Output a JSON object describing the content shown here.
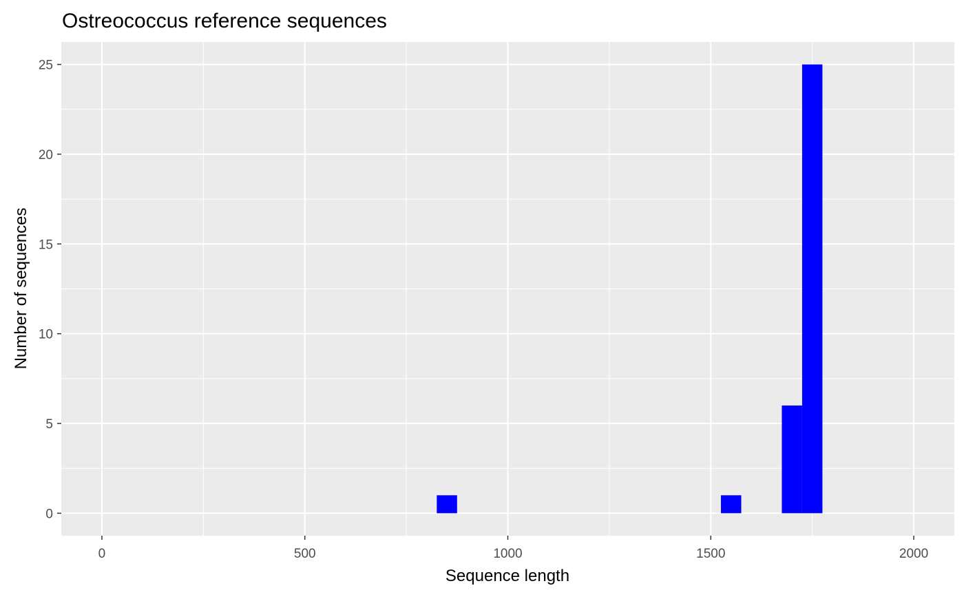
{
  "chart_data": {
    "type": "bar",
    "title": "Ostreococcus reference sequences",
    "xlabel": "Sequence length",
    "ylabel": "Number of sequences",
    "xlim": [
      -100,
      2100
    ],
    "ylim": [
      -1.25,
      26.25
    ],
    "x_ticks": [
      0,
      500,
      1000,
      1500,
      2000
    ],
    "x_minor_ticks": [
      250,
      750,
      1250,
      1750
    ],
    "y_ticks": [
      0,
      5,
      10,
      15,
      20,
      25
    ],
    "y_minor_ticks": [
      2.5,
      7.5,
      12.5,
      17.5,
      22.5
    ],
    "bin_width": 50,
    "bins": [
      {
        "x_start": 825,
        "x_end": 875,
        "count": 1
      },
      {
        "x_start": 1525,
        "x_end": 1575,
        "count": 1
      },
      {
        "x_start": 1675,
        "x_end": 1725,
        "count": 6
      },
      {
        "x_start": 1725,
        "x_end": 1775,
        "count": 25
      }
    ],
    "fill_color": "#0000ff",
    "panel_color": "#ebebeb",
    "grid": true,
    "legend": "none"
  }
}
